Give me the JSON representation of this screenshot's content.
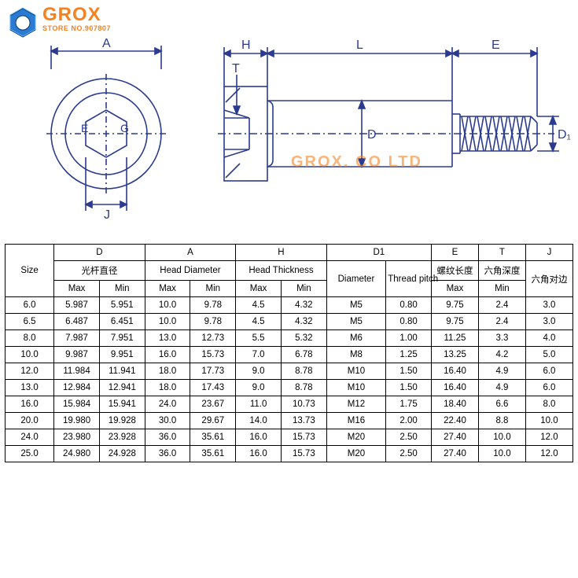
{
  "brand": "GROX",
  "store_line": "STORE NO.907807",
  "watermark": "GROX. CO LTD",
  "diagram": {
    "front_labels": {
      "A": "A",
      "E": "E",
      "G": "G",
      "J": "J"
    },
    "side_labels": {
      "H": "H",
      "T": "T",
      "L": "L",
      "E": "E",
      "D": "D",
      "D1": "D₁"
    },
    "stroke_color": "#2b3b8f",
    "stroke_width": 1.6
  },
  "table": {
    "header": {
      "size": "Size",
      "D_group": "D",
      "D_sub": "光杆直径",
      "A_group": "A",
      "A_sub": "Head Diameter",
      "H_group": "H",
      "H_sub": "Head Thickness",
      "D1_group": "D1",
      "D1_diam": "Diameter",
      "D1_pitch": "Thread pitch",
      "E_group": "E",
      "E_sub": "螺纹长度",
      "T_group": "T",
      "T_sub": "六角深度",
      "J_group": "J",
      "J_sub": "六角对边",
      "max": "Max",
      "min": "Min"
    },
    "rows": [
      {
        "size": "6.0",
        "d_max": "5.987",
        "d_min": "5.951",
        "a_max": "10.0",
        "a_min": "9.78",
        "h_max": "4.5",
        "h_min": "4.32",
        "d1": "M5",
        "pitch": "0.80",
        "e": "9.75",
        "t": "2.4",
        "j": "3.0"
      },
      {
        "size": "6.5",
        "d_max": "6.487",
        "d_min": "6.451",
        "a_max": "10.0",
        "a_min": "9.78",
        "h_max": "4.5",
        "h_min": "4.32",
        "d1": "M5",
        "pitch": "0.80",
        "e": "9.75",
        "t": "2.4",
        "j": "3.0"
      },
      {
        "size": "8.0",
        "d_max": "7.987",
        "d_min": "7.951",
        "a_max": "13.0",
        "a_min": "12.73",
        "h_max": "5.5",
        "h_min": "5.32",
        "d1": "M6",
        "pitch": "1.00",
        "e": "11.25",
        "t": "3.3",
        "j": "4.0"
      },
      {
        "size": "10.0",
        "d_max": "9.987",
        "d_min": "9.951",
        "a_max": "16.0",
        "a_min": "15.73",
        "h_max": "7.0",
        "h_min": "6.78",
        "d1": "M8",
        "pitch": "1.25",
        "e": "13.25",
        "t": "4.2",
        "j": "5.0"
      },
      {
        "size": "12.0",
        "d_max": "11.984",
        "d_min": "11.941",
        "a_max": "18.0",
        "a_min": "17.73",
        "h_max": "9.0",
        "h_min": "8.78",
        "d1": "M10",
        "pitch": "1.50",
        "e": "16.40",
        "t": "4.9",
        "j": "6.0"
      },
      {
        "size": "13.0",
        "d_max": "12.984",
        "d_min": "12.941",
        "a_max": "18.0",
        "a_min": "17.43",
        "h_max": "9.0",
        "h_min": "8.78",
        "d1": "M10",
        "pitch": "1.50",
        "e": "16.40",
        "t": "4.9",
        "j": "6.0"
      },
      {
        "size": "16.0",
        "d_max": "15.984",
        "d_min": "15.941",
        "a_max": "24.0",
        "a_min": "23.67",
        "h_max": "11.0",
        "h_min": "10.73",
        "d1": "M12",
        "pitch": "1.75",
        "e": "18.40",
        "t": "6.6",
        "j": "8.0"
      },
      {
        "size": "20.0",
        "d_max": "19.980",
        "d_min": "19.928",
        "a_max": "30.0",
        "a_min": "29.67",
        "h_max": "14.0",
        "h_min": "13.73",
        "d1": "M16",
        "pitch": "2.00",
        "e": "22.40",
        "t": "8.8",
        "j": "10.0"
      },
      {
        "size": "24.0",
        "d_max": "23.980",
        "d_min": "23.928",
        "a_max": "36.0",
        "a_min": "35.61",
        "h_max": "16.0",
        "h_min": "15.73",
        "d1": "M20",
        "pitch": "2.50",
        "e": "27.40",
        "t": "10.0",
        "j": "12.0"
      },
      {
        "size": "25.0",
        "d_max": "24.980",
        "d_min": "24.928",
        "a_max": "36.0",
        "a_min": "35.61",
        "h_max": "16.0",
        "h_min": "15.73",
        "d1": "M20",
        "pitch": "2.50",
        "e": "27.40",
        "t": "10.0",
        "j": "12.0"
      }
    ]
  }
}
